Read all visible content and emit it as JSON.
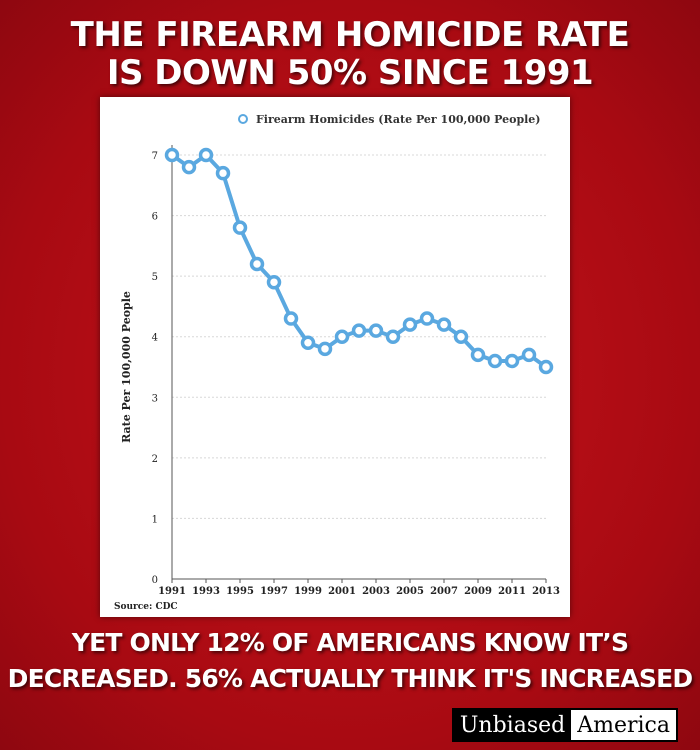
{
  "headline": {
    "line1": "THE FIREARM HOMICIDE RATE",
    "line2": "IS DOWN 50% SINCE 1991"
  },
  "caption": {
    "line1": "YET ONLY 12% OF AMERICANS KNOW IT’S",
    "line2": "DECREASED. 56% ACTUALLY THINK IT'S INCREASED"
  },
  "brand": {
    "part1": "Unbiased",
    "part2": "America"
  },
  "source": "Source: CDC",
  "colors": {
    "background": "#b00d15",
    "line": "#5aa8e0",
    "text": "#ffffff"
  },
  "chart_data": {
    "type": "line",
    "ylabel": "Rate Per 100,000 People",
    "ylim": [
      0,
      7
    ],
    "yticks": [
      0,
      1,
      2,
      3,
      4,
      5,
      6,
      7
    ],
    "xticks": [
      "1991",
      "1993",
      "1995",
      "1997",
      "1999",
      "2001",
      "2003",
      "2005",
      "2007",
      "2009",
      "2011",
      "2013"
    ],
    "grid": true,
    "legend_position": "top",
    "series": [
      {
        "name": "Firearm Homicides (Rate Per 100,000 People)",
        "x": [
          1991,
          1992,
          1993,
          1994,
          1995,
          1996,
          1997,
          1998,
          1999,
          2000,
          2001,
          2002,
          2003,
          2004,
          2005,
          2006,
          2007,
          2008,
          2009,
          2010,
          2011,
          2012,
          2013
        ],
        "values": [
          7.0,
          6.8,
          7.0,
          6.7,
          5.8,
          5.2,
          4.9,
          4.3,
          3.9,
          3.8,
          4.0,
          4.1,
          4.1,
          4.0,
          4.2,
          4.3,
          4.2,
          4.0,
          3.7,
          3.6,
          3.6,
          3.7,
          3.5
        ]
      }
    ]
  }
}
